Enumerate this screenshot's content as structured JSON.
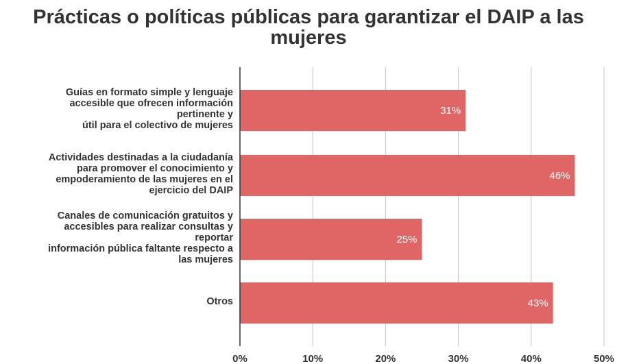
{
  "chart_data": {
    "type": "bar",
    "orientation": "horizontal",
    "title": "Prácticas o políticas públicas para garantizar el DAIP a las mujeres",
    "categories": [
      "Guías en formato simple y lenguaje\naccesible que ofrecen información\npertinente y\nútil para el colectivo de mujeres",
      "Actividades destinadas a la ciudadanía\npara promover el conocimiento y\nempoderamiento de las mujeres en el\nejercicio del DAIP",
      "Canales de comunicación gratuitos y\naccesibles para realizar consultas y\nreportar\ninformación pública faltante respecto a\nlas mujeres",
      "Otros"
    ],
    "values": [
      31,
      46,
      25,
      43
    ],
    "data_labels": [
      "31%",
      "46%",
      "25%",
      "43%"
    ],
    "xlim": [
      0,
      50
    ],
    "xticks": [
      "0%",
      "10%",
      "20%",
      "30%",
      "40%",
      "50%"
    ],
    "grid": true,
    "bar_color": "#e06666",
    "label_color": "#ffffff"
  }
}
